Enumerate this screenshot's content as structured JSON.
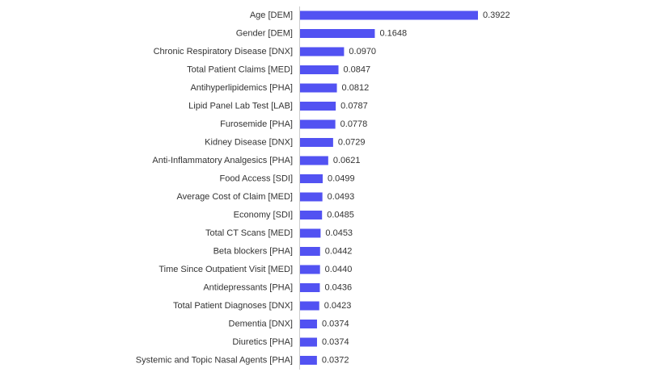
{
  "chart_data": {
    "type": "bar",
    "orientation": "horizontal",
    "color": "#5252f2",
    "categories": [
      "Age [DEM]",
      "Gender [DEM]",
      "Chronic Respiratory Disease [DNX]",
      "Total Patient Claims [MED]",
      "Antihyperlipidemics [PHA]",
      "Lipid Panel Lab Test [LAB]",
      "Furosemide [PHA]",
      "Kidney Disease [DNX]",
      "Anti-Inflammatory Analgesics [PHA]",
      "Food Access [SDI]",
      "Average Cost of Claim [MED]",
      "Economy [SDI]",
      "Total CT Scans [MED]",
      "Beta blockers [PHA]",
      "Time Since Outpatient Visit [MED]",
      "Antidepressants [PHA]",
      "Total Patient Diagnoses [DNX]",
      "Dementia [DNX]",
      "Diuretics [PHA]",
      "Systemic and Topic Nasal Agents [PHA]"
    ],
    "values": [
      0.3922,
      0.1648,
      0.097,
      0.0847,
      0.0812,
      0.0787,
      0.0778,
      0.0729,
      0.0621,
      0.0499,
      0.0493,
      0.0485,
      0.0453,
      0.0442,
      0.044,
      0.0436,
      0.0423,
      0.0374,
      0.0374,
      0.0372
    ],
    "value_labels": [
      "0.3922",
      "0.1648",
      "0.0970",
      "0.0847",
      "0.0812",
      "0.0787",
      "0.0778",
      "0.0729",
      "0.0621",
      "0.0499",
      "0.0493",
      "0.0485",
      "0.0453",
      "0.0442",
      "0.0440",
      "0.0436",
      "0.0423",
      "0.0374",
      "0.0374",
      "0.0372"
    ]
  }
}
